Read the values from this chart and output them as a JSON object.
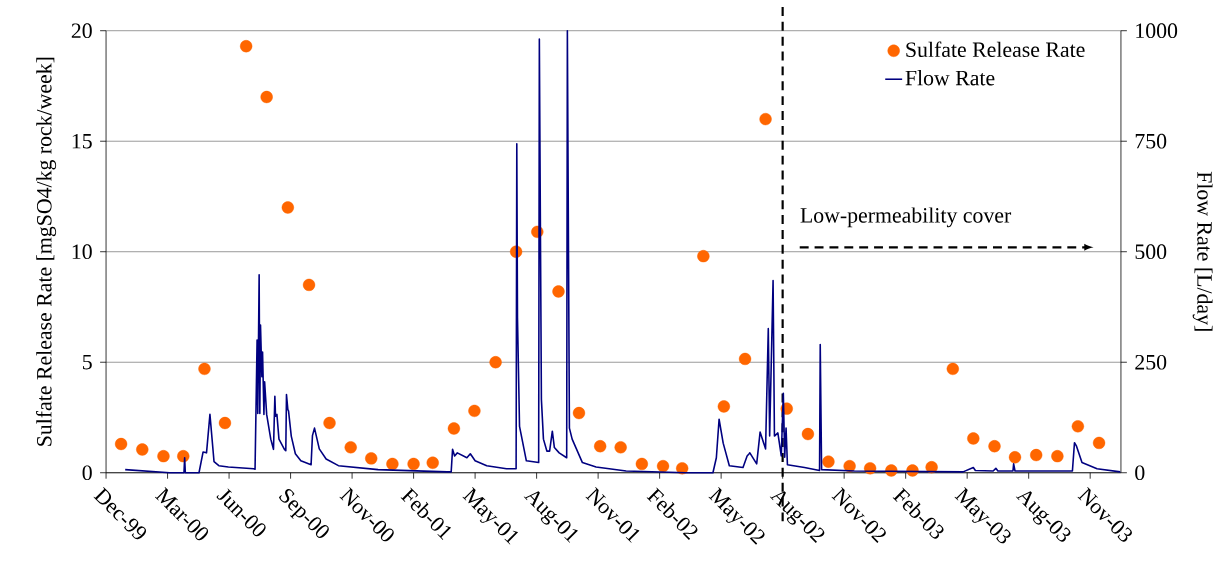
{
  "chart_data": {
    "type": "scatter",
    "ylabel": "Sulfate Release Rate [mgSO4/kg rock/week]",
    "y2label": "Flow Rate [L/day]",
    "xlim": [
      "1999-12-06",
      "2003-12-30"
    ],
    "xticks": [
      {
        "value": "1999-12-06",
        "label": "Dec-99"
      },
      {
        "value": "2000-03-05",
        "label": "Mar-00"
      },
      {
        "value": "2000-06-03",
        "label": "Jun-00"
      },
      {
        "value": "2000-09-01",
        "label": "Sep-00"
      },
      {
        "value": "2000-11-30",
        "label": "Nov-00"
      },
      {
        "value": "2001-02-28",
        "label": "Feb-01"
      },
      {
        "value": "2001-05-29",
        "label": "May-01"
      },
      {
        "value": "2001-08-27",
        "label": "Aug-01"
      },
      {
        "value": "2001-11-25",
        "label": "Nov-01"
      },
      {
        "value": "2002-02-23",
        "label": "Feb-02"
      },
      {
        "value": "2002-05-24",
        "label": "May-02"
      },
      {
        "value": "2002-08-22",
        "label": "Aug-02"
      },
      {
        "value": "2002-11-20",
        "label": "Nov-02"
      },
      {
        "value": "2003-02-18",
        "label": "Feb-03"
      },
      {
        "value": "2003-05-19",
        "label": "May-03"
      },
      {
        "value": "2003-08-17",
        "label": "Aug-03"
      },
      {
        "value": "2003-11-15",
        "label": "Nov-03"
      }
    ],
    "ylim": [
      0,
      20
    ],
    "yticks": [
      0,
      5,
      10,
      15,
      20
    ],
    "y2lim": [
      0,
      1000
    ],
    "y2ticks": [
      0,
      250,
      500,
      750,
      1000
    ],
    "grid": "y",
    "legend": "top right",
    "ref_lines": [
      {
        "axis": "x",
        "value": "2002-08-22",
        "color": "#000000",
        "line_style": "dashed"
      }
    ],
    "annotations": [
      "Low-permeability cover"
    ],
    "series": [
      {
        "name": "Sulfate Release Rate",
        "marker": "circle",
        "color": "#ff6600",
        "x": [
          "1999-12-28",
          "2000-01-28",
          "2000-02-28",
          "2000-03-28",
          "2000-04-28",
          "2000-05-28",
          "2000-06-28",
          "2000-07-28",
          "2000-08-28",
          "2000-09-28",
          "2000-10-28",
          "2000-11-28",
          "2000-12-28",
          "2001-01-28",
          "2001-02-28",
          "2001-03-28",
          "2001-04-28",
          "2001-05-28",
          "2001-06-28",
          "2001-07-28",
          "2001-08-28",
          "2001-09-28",
          "2001-10-28",
          "2001-11-28",
          "2001-12-28",
          "2002-01-28",
          "2002-02-28",
          "2002-03-28",
          "2002-04-28",
          "2002-05-28",
          "2002-06-28",
          "2002-07-28",
          "2002-08-28",
          "2002-09-28",
          "2002-10-28",
          "2002-11-28",
          "2002-12-28",
          "2003-01-28",
          "2003-02-28",
          "2003-03-28",
          "2003-04-28",
          "2003-05-28",
          "2003-06-28",
          "2003-07-28",
          "2003-08-28",
          "2003-09-28",
          "2003-10-28",
          "2003-11-28"
        ],
        "values": [
          1.3,
          1.05,
          0.75,
          0.75,
          4.7,
          2.25,
          19.3,
          17.0,
          12.0,
          8.5,
          2.25,
          1.15,
          0.65,
          0.4,
          0.4,
          0.45,
          2.0,
          2.8,
          5.0,
          10.0,
          10.9,
          8.2,
          2.7,
          1.2,
          1.15,
          0.4,
          0.3,
          0.2,
          9.8,
          3.0,
          5.15,
          16.0,
          2.9,
          1.75,
          0.5,
          0.3,
          0.2,
          0.1,
          0.1,
          0.25,
          4.7,
          1.55,
          1.2,
          0.7,
          0.8,
          0.75,
          2.1,
          1.35
        ]
      },
      {
        "name": "Flow Rate",
        "type": "line",
        "axis": "y2",
        "color": "#000080",
        "x": [
          "2000-01-03",
          "2000-03-08",
          "2000-03-29",
          "2000-03-30",
          "2000-03-31",
          "2000-04-20",
          "2000-04-26",
          "2000-05-01",
          "2000-05-06",
          "2000-05-12",
          "2000-05-19",
          "2000-06-02",
          "2000-07-09",
          "2000-07-11",
          "2000-07-14",
          "2000-07-15",
          "2000-07-17",
          "2000-07-18",
          "2000-07-19",
          "2000-07-21",
          "2000-07-22",
          "2000-07-24",
          "2000-07-25",
          "2000-07-28",
          "2000-08-03",
          "2000-08-07",
          "2000-08-09",
          "2000-08-10",
          "2000-08-12",
          "2000-08-15",
          "2000-08-23",
          "2000-08-25",
          "2000-08-26",
          "2000-08-28",
          "2000-08-29",
          "2000-09-02",
          "2000-09-08",
          "2000-09-16",
          "2000-10-01",
          "2000-10-03",
          "2000-10-06",
          "2000-10-13",
          "2000-10-23",
          "2000-11-10",
          "2001-01-07",
          "2001-04-18",
          "2001-04-24",
          "2001-04-26",
          "2001-04-29",
          "2001-05-03",
          "2001-05-17",
          "2001-05-22",
          "2001-05-29",
          "2001-06-15",
          "2001-07-14",
          "2001-07-28",
          "2001-07-29",
          "2001-07-30",
          "2001-08-02",
          "2001-08-12",
          "2001-08-30",
          "2001-08-31",
          "2001-09-03",
          "2001-09-06",
          "2001-09-11",
          "2001-09-15",
          "2001-09-19",
          "2001-09-22",
          "2001-09-29",
          "2001-10-10",
          "2001-10-11",
          "2001-10-14",
          "2001-10-18",
          "2001-11-02",
          "2001-11-22",
          "2002-01-05",
          "2002-04-02",
          "2002-05-12",
          "2002-05-17",
          "2002-05-21",
          "2002-05-27",
          "2002-06-05",
          "2002-06-25",
          "2002-07-01",
          "2002-07-04",
          "2002-07-05",
          "2002-07-15",
          "2002-07-20",
          "2002-07-28",
          "2002-08-01",
          "2002-08-03",
          "2002-08-08",
          "2002-08-10",
          "2002-08-15",
          "2002-08-20",
          "2002-08-23",
          "2002-08-25",
          "2002-08-27",
          "2002-08-29",
          "2002-09-23",
          "2002-10-15",
          "2002-10-16",
          "2002-10-18",
          "2002-12-05",
          "2003-05-13",
          "2003-05-28",
          "2003-05-31",
          "2003-06-26",
          "2003-06-30",
          "2003-07-03",
          "2003-07-25",
          "2003-07-26",
          "2003-07-28",
          "2003-10-20",
          "2003-10-23",
          "2003-10-26",
          "2003-11-03",
          "2003-11-25",
          "2003-12-29"
        ],
        "values": [
          7,
          0,
          0,
          34,
          0,
          0,
          47,
          45,
          132,
          25,
          16,
          13,
          9,
          8,
          300,
          134,
          448,
          134,
          334,
          217,
          273,
          132,
          206,
          132,
          76,
          53,
          173,
          128,
          132,
          76,
          53,
          50,
          177,
          143,
          140,
          83,
          43,
          27,
          18,
          84,
          101,
          54,
          31,
          16,
          7,
          2,
          2,
          53,
          38,
          45,
          34,
          43,
          27,
          16,
          9,
          9,
          744,
          352,
          105,
          27,
          23,
          981,
          166,
          76,
          49,
          49,
          94,
          57,
          45,
          34,
          1000,
          101,
          76,
          23,
          13,
          4,
          0,
          0,
          34,
          121,
          67,
          16,
          12,
          38,
          43,
          45,
          20,
          92,
          54,
          326,
          83,
          435,
          83,
          90,
          38,
          180,
          35,
          101,
          18,
          12,
          5,
          290,
          7,
          4,
          2,
          12,
          5,
          4,
          10,
          4,
          4,
          20,
          4,
          4,
          68,
          60,
          23,
          9,
          2
        ]
      }
    ]
  }
}
